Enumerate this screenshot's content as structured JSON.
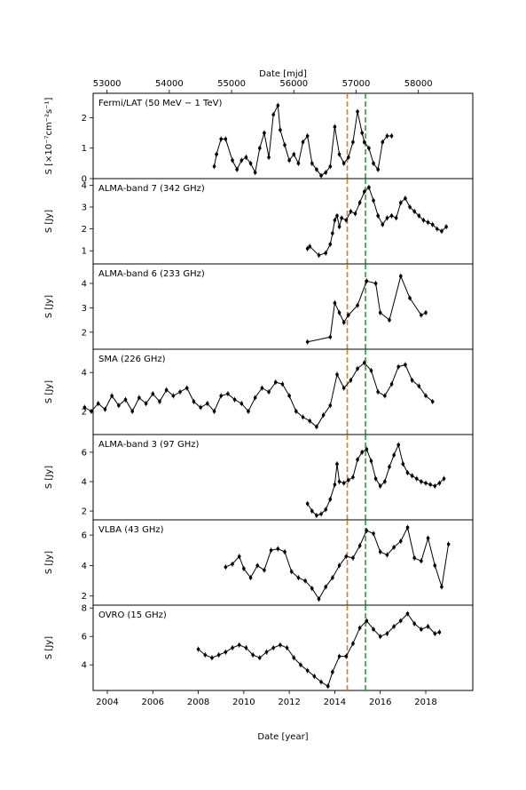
{
  "figure": {
    "top_axis_label": "Date [mjd]",
    "bottom_axis_label": "Date [year]",
    "top_ticks": [
      "53000",
      "54000",
      "55000",
      "56000",
      "57000",
      "58000"
    ],
    "bottom_ticks": [
      "2004",
      "2006",
      "2008",
      "2010",
      "2012",
      "2014",
      "2016",
      "2018"
    ],
    "vlines": [
      {
        "year": 2014.55,
        "color": "#e07b1a"
      },
      {
        "year": 2015.35,
        "color": "#2ca02c"
      }
    ]
  },
  "chart_data": [
    {
      "type": "line",
      "title": "Fermi/LAT (50 MeV − 1 TeV)",
      "ylabel": "S [×10⁻⁷cm⁻²s⁻¹]",
      "ylim": [
        0,
        2.8
      ],
      "yticks": [
        0,
        1,
        2
      ],
      "x": [
        2008.7,
        2008.8,
        2009.0,
        2009.2,
        2009.5,
        2009.7,
        2009.9,
        2010.1,
        2010.3,
        2010.5,
        2010.7,
        2010.9,
        2011.1,
        2011.3,
        2011.5,
        2011.6,
        2011.8,
        2012.0,
        2012.2,
        2012.4,
        2012.6,
        2012.8,
        2013.0,
        2013.2,
        2013.4,
        2013.6,
        2013.8,
        2014.0,
        2014.2,
        2014.4,
        2014.6,
        2014.8,
        2015.0,
        2015.2,
        2015.3,
        2015.5,
        2015.7,
        2015.9,
        2016.1,
        2016.3,
        2016.5
      ],
      "y": [
        0.4,
        0.8,
        1.3,
        1.3,
        0.6,
        0.3,
        0.6,
        0.7,
        0.5,
        0.2,
        1.0,
        1.5,
        0.7,
        2.1,
        2.4,
        1.6,
        1.1,
        0.6,
        0.8,
        0.5,
        1.2,
        1.4,
        0.5,
        0.3,
        0.1,
        0.2,
        0.4,
        1.7,
        0.8,
        0.5,
        0.7,
        1.2,
        2.2,
        1.5,
        1.2,
        1.0,
        0.5,
        0.3,
        1.2,
        1.4,
        1.4
      ]
    },
    {
      "type": "line",
      "title": "ALMA-band 7 (342 GHz)",
      "ylabel": "S [Jy]",
      "ylim": [
        0.4,
        4.3
      ],
      "yticks": [
        1,
        2,
        3,
        4
      ],
      "x": [
        2012.8,
        2012.9,
        2013.3,
        2013.6,
        2013.8,
        2013.9,
        2014.0,
        2014.1,
        2014.2,
        2014.3,
        2014.5,
        2014.7,
        2014.9,
        2015.1,
        2015.3,
        2015.5,
        2015.7,
        2015.9,
        2016.1,
        2016.3,
        2016.5,
        2016.7,
        2016.9,
        2017.1,
        2017.3,
        2017.5,
        2017.7,
        2017.9,
        2018.1,
        2018.3,
        2018.5,
        2018.7,
        2018.9
      ],
      "y": [
        1.1,
        1.2,
        0.8,
        0.9,
        1.3,
        1.8,
        2.4,
        2.6,
        2.1,
        2.5,
        2.4,
        2.8,
        2.7,
        3.2,
        3.7,
        3.9,
        3.3,
        2.6,
        2.2,
        2.5,
        2.6,
        2.5,
        3.2,
        3.4,
        3.0,
        2.8,
        2.6,
        2.4,
        2.3,
        2.2,
        2.0,
        1.9,
        2.1
      ]
    },
    {
      "type": "line",
      "title": "ALMA-band 6 (233 GHz)",
      "ylabel": "S [Jy]",
      "ylim": [
        1.3,
        4.8
      ],
      "yticks": [
        2,
        3,
        4
      ],
      "x": [
        2012.8,
        2013.8,
        2014.0,
        2014.2,
        2014.4,
        2014.6,
        2015.0,
        2015.4,
        2015.8,
        2016.0,
        2016.4,
        2016.9,
        2017.3,
        2017.8,
        2018.0
      ],
      "y": [
        1.6,
        1.8,
        3.2,
        2.8,
        2.4,
        2.7,
        3.1,
        4.1,
        4.0,
        2.8,
        2.5,
        4.3,
        3.4,
        2.7,
        2.8
      ]
    },
    {
      "type": "line",
      "title": "SMA (226 GHz)",
      "ylabel": "S [Jy]",
      "ylim": [
        0.8,
        5.2
      ],
      "yticks": [
        2,
        4
      ],
      "x": [
        2003.0,
        2003.3,
        2003.6,
        2003.9,
        2004.2,
        2004.5,
        2004.8,
        2005.1,
        2005.4,
        2005.7,
        2006.0,
        2006.3,
        2006.6,
        2006.9,
        2007.2,
        2007.5,
        2007.8,
        2008.1,
        2008.4,
        2008.7,
        2009.0,
        2009.3,
        2009.6,
        2009.9,
        2010.2,
        2010.5,
        2010.8,
        2011.1,
        2011.4,
        2011.7,
        2012.0,
        2012.3,
        2012.6,
        2012.9,
        2013.2,
        2013.5,
        2013.8,
        2014.1,
        2014.4,
        2014.7,
        2015.0,
        2015.3,
        2015.6,
        2015.9,
        2016.2,
        2016.5,
        2016.8,
        2017.1,
        2017.4,
        2017.7,
        2018.0,
        2018.3
      ],
      "y": [
        2.2,
        2.0,
        2.4,
        2.1,
        2.8,
        2.3,
        2.6,
        2.0,
        2.7,
        2.4,
        2.9,
        2.5,
        3.1,
        2.8,
        3.0,
        3.2,
        2.5,
        2.2,
        2.4,
        2.0,
        2.8,
        2.9,
        2.6,
        2.4,
        2.0,
        2.7,
        3.2,
        3.0,
        3.5,
        3.4,
        2.8,
        2.0,
        1.7,
        1.5,
        1.2,
        1.8,
        2.3,
        3.9,
        3.2,
        3.6,
        4.2,
        4.5,
        4.1,
        3.0,
        2.8,
        3.4,
        4.3,
        4.4,
        3.6,
        3.3,
        2.8,
        2.5
      ]
    },
    {
      "type": "line",
      "title": "ALMA-band 3 (97 GHz)",
      "ylabel": "S [Jy]",
      "ylim": [
        1.4,
        7.2
      ],
      "yticks": [
        2,
        4,
        6
      ],
      "x": [
        2012.8,
        2013.0,
        2013.2,
        2013.4,
        2013.6,
        2013.8,
        2014.0,
        2014.1,
        2014.2,
        2014.4,
        2014.6,
        2014.8,
        2015.0,
        2015.2,
        2015.4,
        2015.6,
        2015.8,
        2016.0,
        2016.2,
        2016.4,
        2016.6,
        2016.8,
        2017.0,
        2017.2,
        2017.4,
        2017.6,
        2017.8,
        2018.0,
        2018.2,
        2018.4,
        2018.6,
        2018.8
      ],
      "y": [
        2.5,
        2.0,
        1.7,
        1.8,
        2.1,
        2.8,
        3.8,
        5.2,
        4.0,
        3.9,
        4.1,
        4.3,
        5.5,
        6.0,
        6.2,
        5.4,
        4.2,
        3.7,
        4.0,
        5.0,
        5.8,
        6.5,
        5.2,
        4.6,
        4.4,
        4.2,
        4.0,
        3.9,
        3.8,
        3.7,
        3.9,
        4.2
      ]
    },
    {
      "type": "line",
      "title": "VLBA (43 GHz)",
      "ylabel": "S [Jy]",
      "ylim": [
        1.4,
        7.0
      ],
      "yticks": [
        2,
        4,
        6
      ],
      "x": [
        2009.2,
        2009.5,
        2009.8,
        2010.0,
        2010.3,
        2010.6,
        2010.9,
        2011.2,
        2011.5,
        2011.8,
        2012.1,
        2012.4,
        2012.7,
        2013.0,
        2013.3,
        2013.6,
        2013.9,
        2014.2,
        2014.5,
        2014.8,
        2015.1,
        2015.4,
        2015.7,
        2016.0,
        2016.3,
        2016.6,
        2016.9,
        2017.2,
        2017.5,
        2017.8,
        2018.1,
        2018.4,
        2018.7,
        2019.0
      ],
      "y": [
        3.9,
        4.1,
        4.6,
        3.8,
        3.2,
        4.0,
        3.7,
        5.0,
        5.1,
        4.9,
        3.6,
        3.2,
        3.0,
        2.5,
        1.8,
        2.6,
        3.2,
        4.0,
        4.6,
        4.5,
        5.3,
        6.3,
        6.1,
        4.9,
        4.7,
        5.2,
        5.6,
        6.5,
        4.5,
        4.3,
        5.8,
        4.0,
        2.6,
        5.4
      ]
    },
    {
      "type": "line",
      "title": "OVRO (15 GHz)",
      "ylabel": "S [Jy]",
      "ylim": [
        2.2,
        8.2
      ],
      "yticks": [
        4,
        6,
        8
      ],
      "x": [
        2008.0,
        2008.3,
        2008.6,
        2008.9,
        2009.2,
        2009.5,
        2009.8,
        2010.1,
        2010.4,
        2010.7,
        2011.0,
        2011.3,
        2011.6,
        2011.9,
        2012.2,
        2012.5,
        2012.8,
        2013.1,
        2013.4,
        2013.7,
        2013.9,
        2014.2,
        2014.5,
        2014.8,
        2015.1,
        2015.4,
        2015.7,
        2016.0,
        2016.3,
        2016.6,
        2016.9,
        2017.2,
        2017.5,
        2017.8,
        2018.1,
        2018.4,
        2018.6
      ],
      "y": [
        5.1,
        4.7,
        4.5,
        4.7,
        4.9,
        5.2,
        5.4,
        5.2,
        4.7,
        4.5,
        4.9,
        5.2,
        5.4,
        5.2,
        4.5,
        4.0,
        3.6,
        3.2,
        2.8,
        2.5,
        3.5,
        4.6,
        4.6,
        5.5,
        6.6,
        7.1,
        6.5,
        6.0,
        6.2,
        6.7,
        7.1,
        7.6,
        6.9,
        6.5,
        6.7,
        6.2,
        6.3
      ]
    }
  ]
}
